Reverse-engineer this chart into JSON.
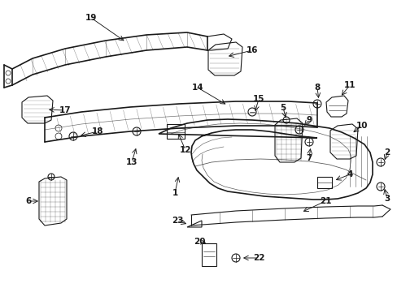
{
  "bg_color": "#ffffff",
  "line_color": "#1a1a1a",
  "text_color": "#1a1a1a",
  "fig_width": 4.89,
  "fig_height": 3.6,
  "dpi": 100,
  "lw": 0.8,
  "lw_thick": 1.2,
  "fontsize": 7.5
}
